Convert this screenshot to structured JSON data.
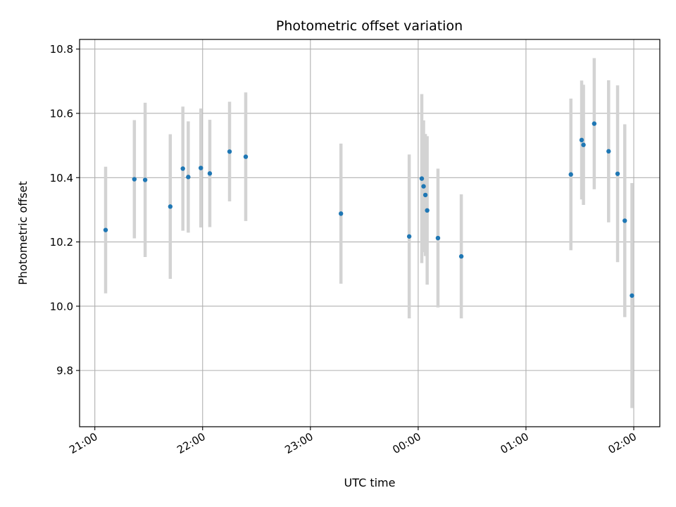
{
  "chart_data": {
    "type": "scatter",
    "title": "Photometric offset variation",
    "xlabel": "UTC time",
    "ylabel": "Photometric offset",
    "x_tick_labels": [
      "21:00",
      "22:00",
      "23:00",
      "00:00",
      "01:00",
      "02:00"
    ],
    "y_tick_labels": [
      "9.8",
      "10.0",
      "10.2",
      "10.4",
      "10.6",
      "10.8"
    ],
    "xlim_minutes_from_2100": [
      -8.5,
      314.5
    ],
    "ylim": [
      9.625,
      10.83
    ],
    "y_ticks": [
      9.8,
      10.0,
      10.2,
      10.4,
      10.6,
      10.8
    ],
    "grid": true,
    "marker_color": "#1f77b4",
    "errorbar_color": "#d3d3d3",
    "points": [
      {
        "t": "21:06",
        "y": 10.237,
        "err": 0.197
      },
      {
        "t": "21:22",
        "y": 10.395,
        "err": 0.184
      },
      {
        "t": "21:28",
        "y": 10.393,
        "err": 0.24
      },
      {
        "t": "21:42",
        "y": 10.31,
        "err": 0.225
      },
      {
        "t": "21:49",
        "y": 10.428,
        "err": 0.193
      },
      {
        "t": "21:52",
        "y": 10.402,
        "err": 0.173
      },
      {
        "t": "21:59",
        "y": 10.43,
        "err": 0.185
      },
      {
        "t": "22:04",
        "y": 10.413,
        "err": 0.167
      },
      {
        "t": "22:15",
        "y": 10.481,
        "err": 0.155
      },
      {
        "t": "22:24",
        "y": 10.465,
        "err": 0.2
      },
      {
        "t": "23:17",
        "y": 10.288,
        "err": 0.218
      },
      {
        "t": "23:55",
        "y": 10.217,
        "err": 0.255
      },
      {
        "t": "00:02",
        "y": 10.397,
        "err": 0.263
      },
      {
        "t": "00:03",
        "y": 10.373,
        "err": 0.205
      },
      {
        "t": "00:04",
        "y": 10.346,
        "err": 0.19
      },
      {
        "t": "00:05",
        "y": 10.298,
        "err": 0.231
      },
      {
        "t": "00:11",
        "y": 10.212,
        "err": 0.216
      },
      {
        "t": "00:24",
        "y": 10.155,
        "err": 0.193
      },
      {
        "t": "01:25",
        "y": 10.41,
        "err": 0.236
      },
      {
        "t": "01:31",
        "y": 10.517,
        "err": 0.185
      },
      {
        "t": "01:32",
        "y": 10.502,
        "err": 0.187
      },
      {
        "t": "01:38",
        "y": 10.568,
        "err": 0.204
      },
      {
        "t": "01:46",
        "y": 10.482,
        "err": 0.221
      },
      {
        "t": "01:51",
        "y": 10.412,
        "err": 0.275
      },
      {
        "t": "01:55",
        "y": 10.266,
        "err": 0.3
      },
      {
        "t": "01:59",
        "y": 10.033,
        "err": 0.35
      }
    ]
  }
}
